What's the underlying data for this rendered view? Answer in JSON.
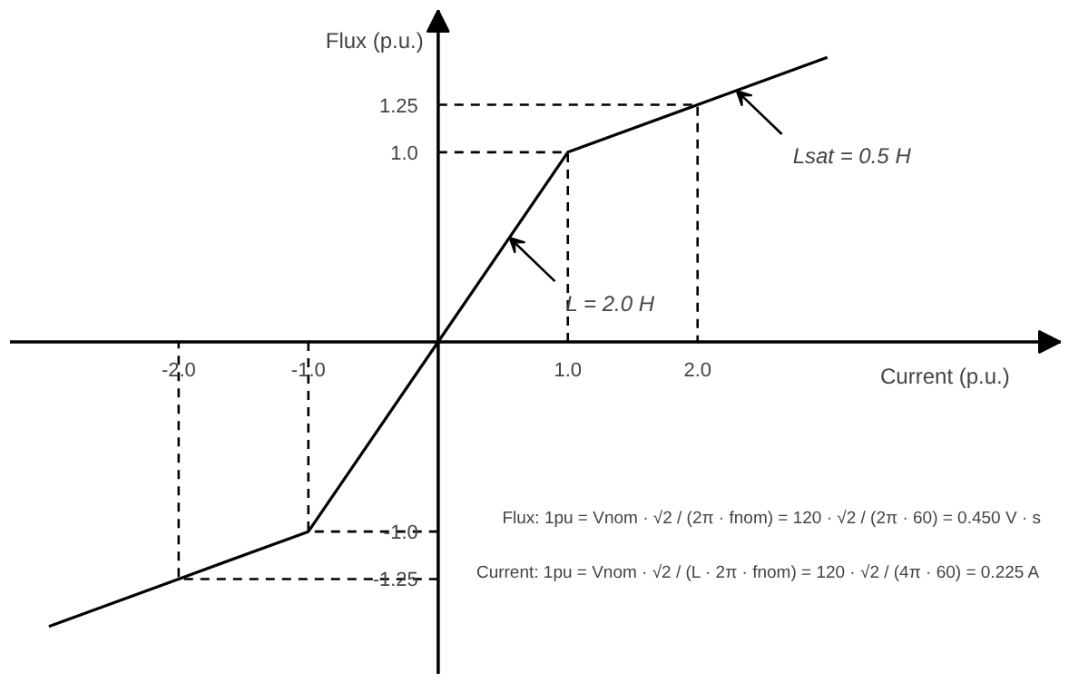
{
  "chart_data": {
    "type": "line",
    "xlabel": "Current (p.u.)",
    "ylabel": "Flux (p.u.)",
    "xlim": [
      -3.3,
      4.8
    ],
    "ylim": [
      -1.75,
      1.75
    ],
    "xticks": [
      {
        "value": -2,
        "label": "-2.0"
      },
      {
        "value": -1,
        "label": "-1.0"
      },
      {
        "value": 1,
        "label": "1.0"
      },
      {
        "value": 2,
        "label": "2.0"
      }
    ],
    "yticks": [
      {
        "value": -1.25,
        "label": "-1.25"
      },
      {
        "value": -1,
        "label": "-1.0"
      },
      {
        "value": 1,
        "label": "1.0"
      },
      {
        "value": 1.25,
        "label": "1.25"
      }
    ],
    "grid": false,
    "marker": "none",
    "series": [
      {
        "color": "#000000",
        "line_style": "solid",
        "x": [
          -3,
          -2,
          -1,
          0,
          1,
          2,
          3
        ],
        "values": [
          -1.5,
          -1.25,
          -1,
          0,
          1,
          1.25,
          1.5
        ]
      },
      {
        "color": "#000000",
        "line_style": "dashed",
        "x": [
          0,
          1,
          1
        ],
        "values": [
          1,
          1,
          0
        ]
      },
      {
        "color": "#000000",
        "line_style": "dashed",
        "x": [
          0,
          2,
          2
        ],
        "values": [
          1.25,
          1.25,
          0
        ]
      },
      {
        "color": "#000000",
        "line_style": "dashed",
        "x": [
          0,
          -1,
          -1
        ],
        "values": [
          -1,
          -1,
          0
        ]
      },
      {
        "color": "#000000",
        "line_style": "dashed",
        "x": [
          0,
          -2,
          -2
        ],
        "values": [
          -1.25,
          -1.25,
          0
        ]
      }
    ],
    "annotations": [
      {
        "text": "Lsat = 0.5 H",
        "x": 2.3,
        "y": 1.325
      },
      {
        "text": "L = 2.0 H",
        "x": 0.55,
        "y": 0.55
      },
      "Flux: 1pu = Vnom · √2 / (2π · fnom) = 120 · √2 / (2π · 60) = 0.450 V · s",
      "Current: 1pu = Vnom · √2 / (L · 2π · fnom) = 120 · √2 / (4π · 60) = 0.225 A"
    ]
  }
}
